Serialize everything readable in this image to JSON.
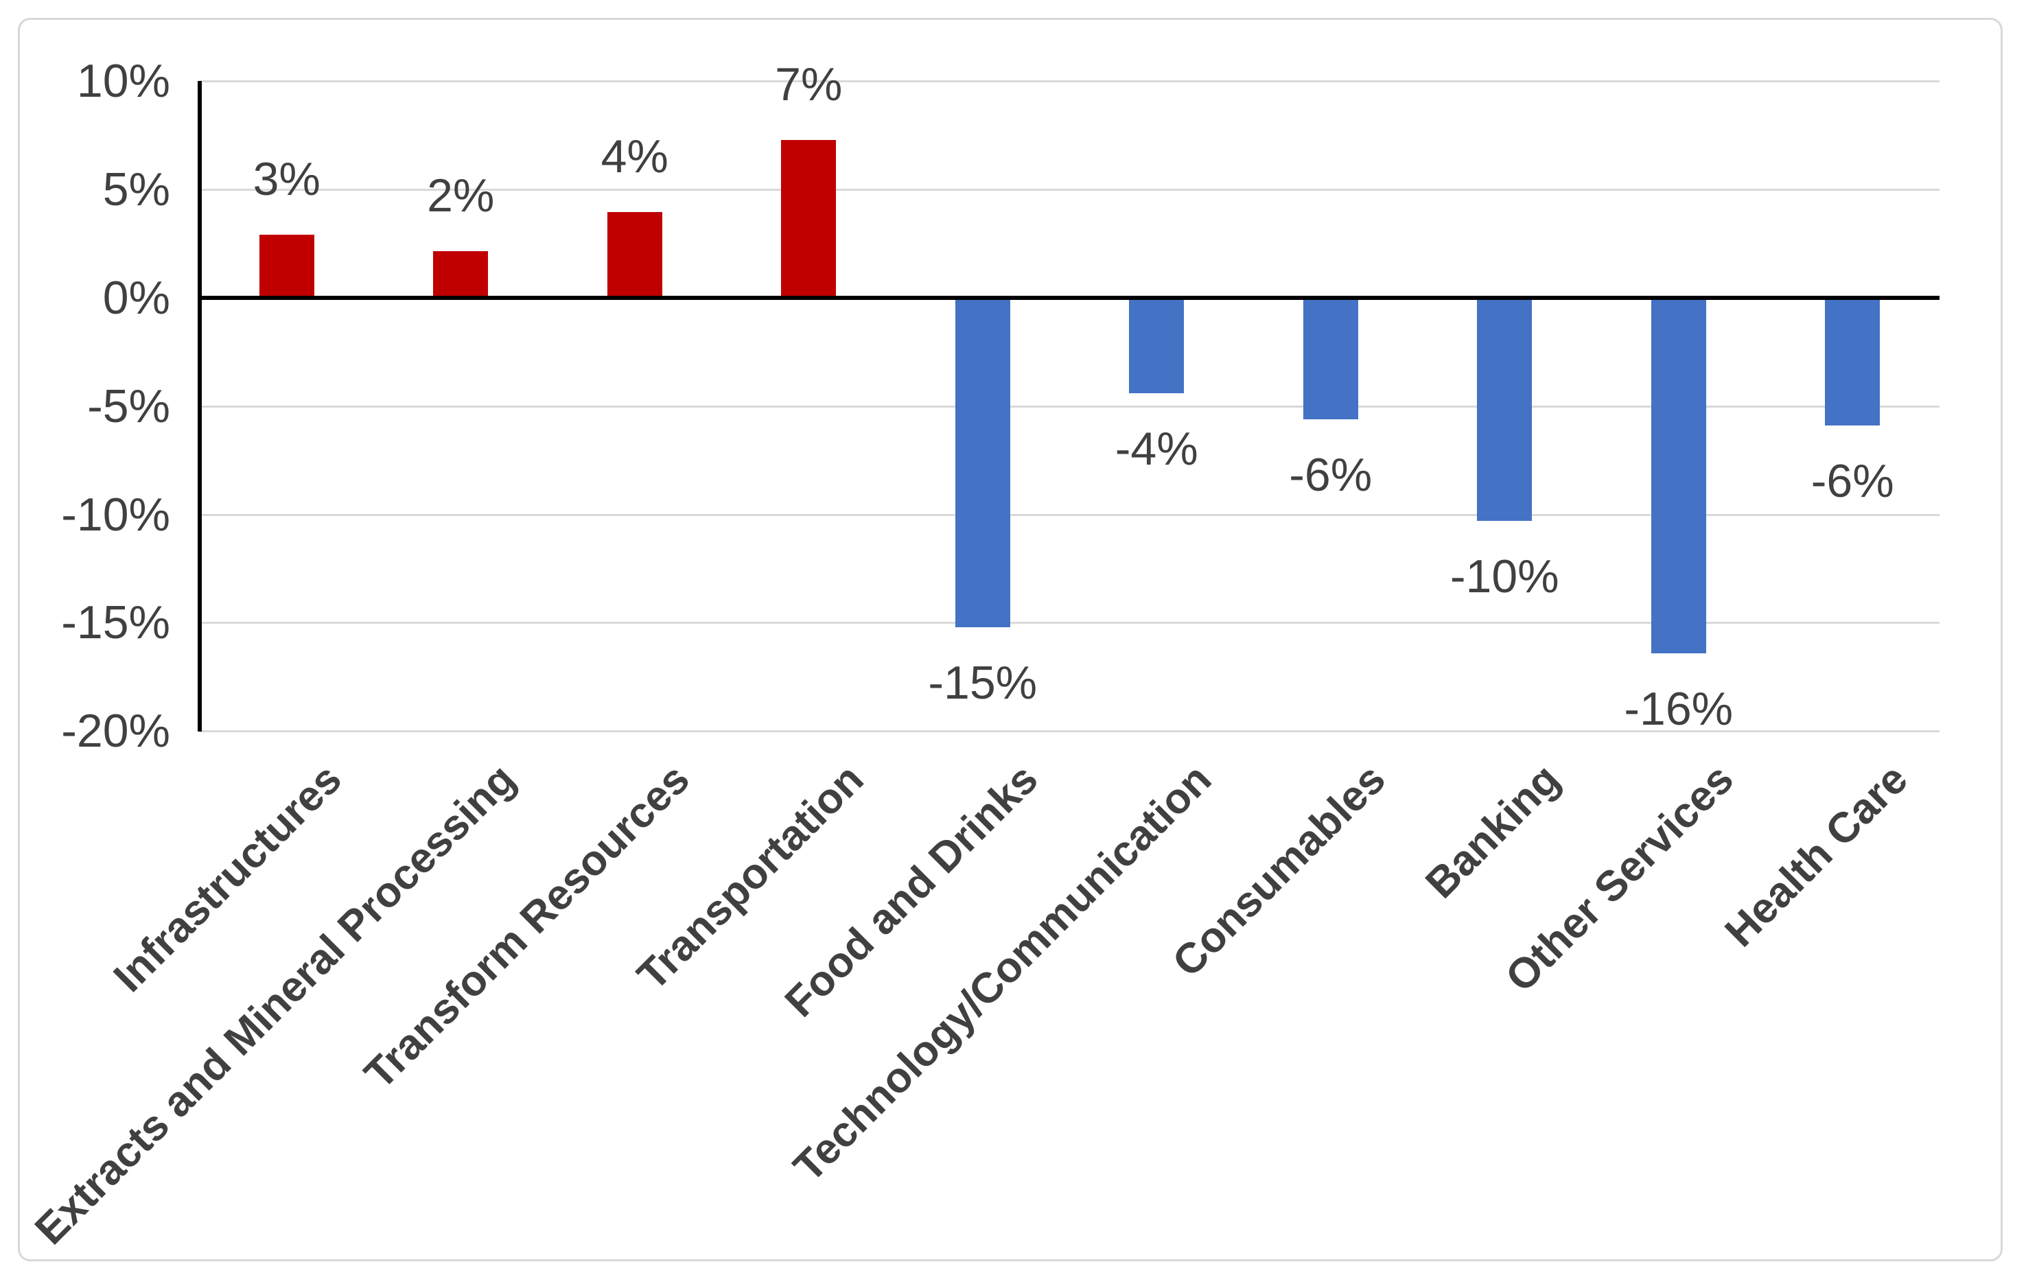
{
  "chart_data": {
    "type": "bar",
    "title": "",
    "xlabel": "",
    "ylabel": "",
    "categories": [
      "Infrastructures",
      "Extracts and Mineral Processing",
      "Transform Resources",
      "Transportation",
      "Food and Drinks",
      "Technology/Communication",
      "Consumables",
      "Banking",
      "Other Services",
      "Health Care"
    ],
    "values": [
      3,
      2,
      4,
      7,
      -15,
      -4,
      -6,
      -10,
      -16,
      -6
    ],
    "value_labels": [
      "3%",
      "2%",
      "4%",
      "7%",
      "-15%",
      "-4%",
      "-6%",
      "-10%",
      "-16%",
      "-6%"
    ],
    "draw_values": [
      2.9,
      2.15,
      3.95,
      7.3,
      -15.2,
      -4.4,
      -5.6,
      -10.3,
      -16.4,
      -5.9
    ],
    "y_ticks": [
      "10%",
      "5%",
      "0%",
      "-5%",
      "-10%",
      "-15%",
      "-20%"
    ],
    "y_tick_values": [
      10,
      5,
      0,
      -5,
      -10,
      -15,
      -20
    ],
    "ylim": [
      -20,
      10
    ],
    "grid": true,
    "legend": false,
    "colors": {
      "positive": "#C00000",
      "negative": "#4472C4",
      "gridline": "#D9D9D9",
      "zero_line": "#000000",
      "axis_line": "#000000",
      "text": "#404040",
      "border": "#D8D8D8",
      "background": "#FFFFFF"
    }
  }
}
